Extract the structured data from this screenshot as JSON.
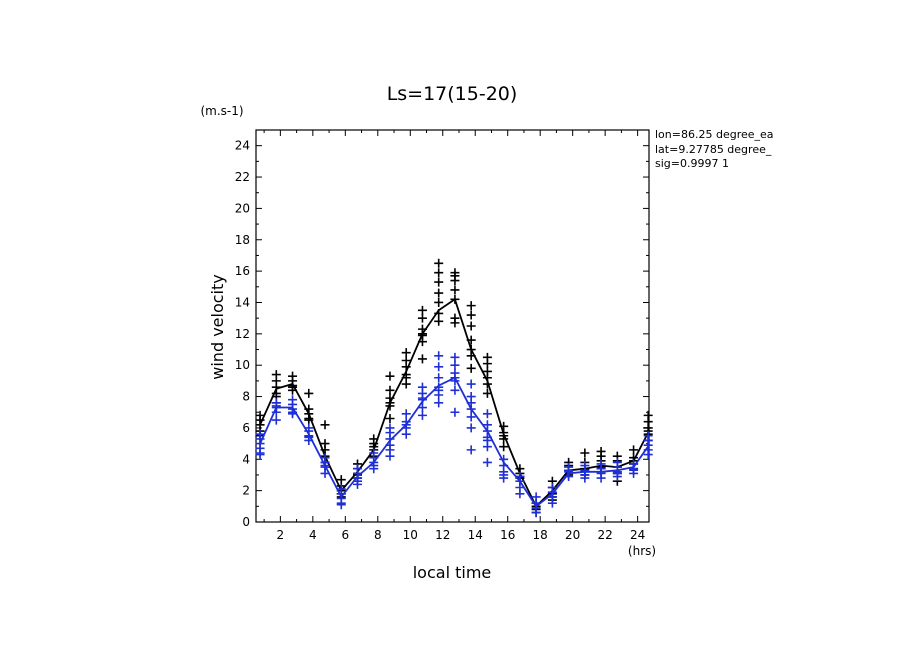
{
  "chart_data": {
    "type": "line",
    "title": "Ls=17(15-20)",
    "xlabel": "local time",
    "ylabel": "wind velocity",
    "x_unit": "(hrs)",
    "y_unit": "(m.s-1)",
    "xlim": [
      0.5,
      24.7
    ],
    "ylim": [
      0,
      25
    ],
    "xticks": [
      "2",
      "4",
      "6",
      "8",
      "10",
      "12",
      "14",
      "16",
      "18",
      "20",
      "22",
      "24"
    ],
    "yticks": [
      "0",
      "2",
      "4",
      "6",
      "8",
      "10",
      "12",
      "14",
      "16",
      "18",
      "20",
      "22",
      "24"
    ],
    "annotations": [
      "lon=86.25 degree_ea",
      "lat=9.27785 degree_",
      "sig=0.9997 1"
    ],
    "x": [
      0.75,
      1.75,
      2.75,
      3.75,
      4.75,
      5.75,
      6.75,
      7.75,
      8.75,
      9.75,
      10.75,
      11.75,
      12.75,
      13.75,
      14.75,
      15.75,
      16.75,
      17.75,
      18.75,
      19.75,
      20.75,
      21.75,
      22.75,
      23.75,
      24.75
    ],
    "series": [
      {
        "color": "#000000",
        "mean": [
          6.2,
          8.5,
          8.8,
          6.9,
          4.2,
          2.0,
          3.2,
          4.6,
          7.6,
          9.6,
          12.0,
          13.5,
          14.2,
          11.0,
          9.0,
          5.6,
          3.1,
          1.0,
          2.0,
          3.3,
          3.4,
          3.6,
          3.5,
          3.9,
          5.8
        ],
        "samples": [
          [
            5.8,
            6.2,
            6.5,
            6.8,
            5.5
          ],
          [
            7.6,
            8.2,
            8.6,
            9.0,
            9.4,
            8.0
          ],
          [
            8.4,
            8.7,
            9.0,
            9.3,
            8.6
          ],
          [
            6.5,
            6.9,
            7.2,
            8.2,
            6.6
          ],
          [
            3.8,
            4.2,
            4.6,
            5.0,
            6.2
          ],
          [
            1.6,
            2.0,
            2.3,
            2.7,
            1.8
          ],
          [
            2.8,
            3.1,
            3.4,
            3.7,
            3.0
          ],
          [
            4.2,
            4.6,
            5.0,
            5.3,
            4.8
          ],
          [
            6.6,
            7.4,
            7.9,
            8.4,
            9.3,
            7.6
          ],
          [
            8.8,
            9.4,
            9.9,
            10.3,
            10.8,
            9.2
          ],
          [
            10.4,
            11.5,
            11.9,
            12.3,
            13.0,
            13.5,
            12.0
          ],
          [
            12.8,
            13.3,
            14.0,
            14.6,
            15.3,
            15.9,
            16.5
          ],
          [
            12.7,
            13.0,
            14.2,
            14.8,
            15.4,
            15.7,
            15.9
          ],
          [
            9.8,
            10.6,
            11.0,
            11.6,
            12.5,
            13.2,
            13.8
          ],
          [
            8.2,
            8.8,
            9.2,
            9.6,
            10.1,
            10.5
          ],
          [
            4.8,
            5.3,
            5.7,
            6.1,
            5.5
          ],
          [
            2.8,
            3.1,
            3.4,
            2.9
          ],
          [
            0.6,
            0.8,
            1.0,
            1.2
          ],
          [
            1.4,
            1.8,
            2.2,
            2.6,
            1.6
          ],
          [
            3.0,
            3.3,
            3.6,
            3.8
          ],
          [
            3.0,
            3.4,
            3.8,
            4.4,
            3.2
          ],
          [
            3.2,
            3.5,
            3.9,
            4.2,
            4.5,
            3.4
          ],
          [
            2.6,
            3.1,
            3.5,
            3.9,
            4.2
          ],
          [
            3.4,
            3.7,
            4.1,
            4.6,
            3.9
          ],
          [
            5.2,
            5.6,
            6.0,
            6.4,
            6.8,
            5.8
          ]
        ]
      },
      {
        "color": "#1f2fd6",
        "mean": [
          5.0,
          7.3,
          7.3,
          5.6,
          3.6,
          1.6,
          2.9,
          3.8,
          5.2,
          6.2,
          7.7,
          8.7,
          9.2,
          7.2,
          5.8,
          3.8,
          2.6,
          1.0,
          1.8,
          3.1,
          3.2,
          3.2,
          3.3,
          3.5,
          4.9
        ],
        "samples": [
          [
            4.3,
            4.7,
            5.0,
            5.3,
            5.6,
            4.4
          ],
          [
            6.5,
            7.0,
            7.3,
            7.6,
            7.4
          ],
          [
            6.9,
            7.2,
            7.5,
            7.8,
            7.0
          ],
          [
            5.2,
            5.5,
            5.8,
            6.0,
            5.4
          ],
          [
            3.1,
            3.5,
            3.8,
            4.1,
            3.6
          ],
          [
            1.1,
            1.5,
            1.8,
            2.1,
            1.2
          ],
          [
            2.4,
            2.8,
            3.1,
            3.4,
            2.6
          ],
          [
            3.4,
            3.8,
            4.1,
            4.4,
            3.6
          ],
          [
            4.2,
            4.9,
            5.3,
            5.7,
            6.0,
            4.6
          ],
          [
            5.6,
            6.0,
            6.4,
            6.9,
            6.2
          ],
          [
            6.8,
            7.3,
            7.8,
            8.2,
            8.6,
            7.9
          ],
          [
            7.6,
            8.1,
            8.6,
            9.2,
            9.9,
            10.6,
            8.4
          ],
          [
            7.0,
            8.4,
            9.0,
            9.5,
            10.0,
            10.5,
            9.2
          ],
          [
            4.6,
            6.0,
            6.7,
            7.2,
            7.6,
            8.0,
            8.8
          ],
          [
            3.8,
            4.8,
            5.4,
            5.8,
            6.2,
            6.9,
            5.2
          ],
          [
            2.8,
            3.2,
            3.6,
            4.0,
            3.0
          ],
          [
            1.8,
            2.2,
            2.6,
            2.9
          ],
          [
            0.6,
            0.9,
            1.2,
            1.6
          ],
          [
            1.2,
            1.6,
            1.9,
            2.2
          ],
          [
            2.9,
            3.2,
            3.5,
            3.3
          ],
          [
            2.8,
            3.0,
            3.3,
            3.6
          ],
          [
            2.8,
            3.1,
            3.4,
            3.7
          ],
          [
            2.9,
            3.2,
            3.5,
            3.8,
            3.1
          ],
          [
            3.1,
            3.4,
            3.7,
            3.3
          ],
          [
            4.3,
            4.6,
            4.9,
            5.2,
            5.5
          ]
        ]
      }
    ]
  }
}
